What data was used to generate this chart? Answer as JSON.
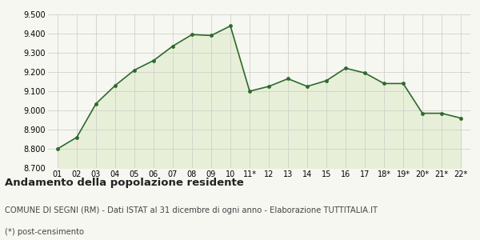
{
  "labels": [
    "01",
    "02",
    "03",
    "04",
    "05",
    "06",
    "07",
    "08",
    "09",
    "10",
    "11*",
    "12",
    "13",
    "14",
    "15",
    "16",
    "17",
    "18*",
    "19*",
    "20*",
    "21*",
    "22*"
  ],
  "values": [
    8800,
    8860,
    9035,
    9130,
    9210,
    9260,
    9335,
    9395,
    9390,
    9440,
    9100,
    9125,
    9165,
    9125,
    9155,
    9220,
    9195,
    9140,
    9140,
    8985,
    8985,
    8960
  ],
  "line_color": "#2d6a2d",
  "fill_color": "#e8efd8",
  "marker_color": "#2d6a2d",
  "background_color": "#f7f7f2",
  "grid_color": "#d0d0c8",
  "ylim": [
    8700,
    9500
  ],
  "yticks": [
    8700,
    8800,
    8900,
    9000,
    9100,
    9200,
    9300,
    9400,
    9500
  ],
  "title": "Andamento della popolazione residente",
  "subtitle": "COMUNE DI SEGNI (RM) - Dati ISTAT al 31 dicembre di ogni anno - Elaborazione TUTTITALIA.IT",
  "footnote": "(*) post-censimento",
  "title_fontsize": 9.5,
  "subtitle_fontsize": 7.2,
  "footnote_fontsize": 7.2,
  "tick_fontsize": 7.0
}
